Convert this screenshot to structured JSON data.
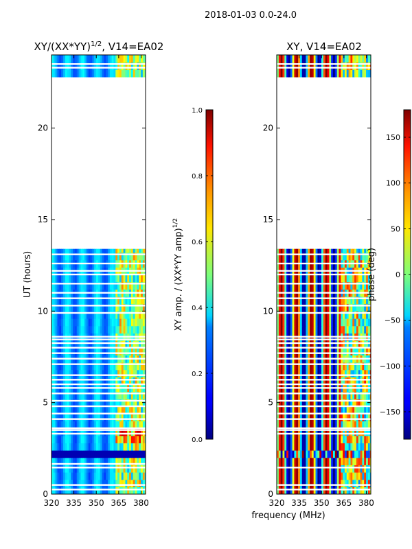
{
  "suptitle": "2018-01-03 0.0-24.0",
  "xlabel_shared": "frequency (MHz)",
  "chart_data": [
    {
      "type": "heatmap",
      "title_main": "XY/(XX*YY)",
      "title_exp": "1/2",
      "title_tail": ", V14=EA02",
      "ylabel": "UT (hours)",
      "xticks": [
        320,
        335,
        350,
        365,
        380
      ],
      "yticks": [
        0,
        5,
        10,
        15,
        20
      ],
      "xlim": [
        320,
        383
      ],
      "ylim": [
        0,
        24
      ],
      "colorbar": {
        "label_main": "XY amp. / (XX*YY amp)",
        "label_exp": "1/2",
        "range": [
          0.0,
          1.0
        ],
        "ticks": [
          "0.0",
          "0.2",
          "0.4",
          "0.6",
          "0.8",
          "1.0"
        ],
        "tick_values": [
          0.0,
          0.2,
          0.4,
          0.6,
          0.8,
          1.0
        ]
      },
      "data_blocks_ut": [
        [
          0.0,
          13.4
        ],
        [
          22.8,
          24.0
        ]
      ],
      "gaps_ut": [
        0.25,
        0.5,
        1.45,
        1.65,
        3.3,
        3.5,
        3.6,
        4.1,
        4.4,
        4.8,
        5.1,
        5.5,
        5.8,
        6.0,
        6.25,
        6.5,
        7.1,
        7.4,
        7.7,
        8.0,
        8.25,
        8.45,
        8.6,
        9.9,
        10.3,
        10.7,
        11.0,
        11.5,
        12.0,
        12.2,
        12.6,
        13.1,
        23.3,
        23.5
      ]
    },
    {
      "type": "heatmap",
      "title": "XY, V14=EA02",
      "xticks": [
        320,
        335,
        350,
        365,
        380
      ],
      "yticks": [
        0,
        5,
        10,
        15,
        20
      ],
      "xlim": [
        320,
        383
      ],
      "ylim": [
        0,
        24
      ],
      "colorbar": {
        "label": "phase (deg)",
        "range": [
          -180,
          180
        ],
        "ticks": [
          "−150",
          "−100",
          "−50",
          "0",
          "50",
          "100",
          "150"
        ],
        "tick_values": [
          -150,
          -100,
          -50,
          0,
          50,
          100,
          150
        ]
      },
      "data_blocks_ut": [
        [
          0.0,
          13.4
        ],
        [
          22.8,
          24.0
        ]
      ],
      "gaps_ut": [
        0.25,
        0.5,
        1.45,
        3.3,
        3.5,
        3.6,
        4.1,
        4.4,
        4.8,
        5.1,
        5.5,
        5.8,
        6.0,
        6.25,
        6.5,
        7.1,
        7.4,
        7.7,
        8.0,
        8.25,
        8.45,
        8.6,
        9.9,
        10.3,
        10.7,
        11.0,
        11.5,
        12.0,
        12.2,
        12.6,
        13.1,
        23.3,
        23.5
      ]
    }
  ]
}
